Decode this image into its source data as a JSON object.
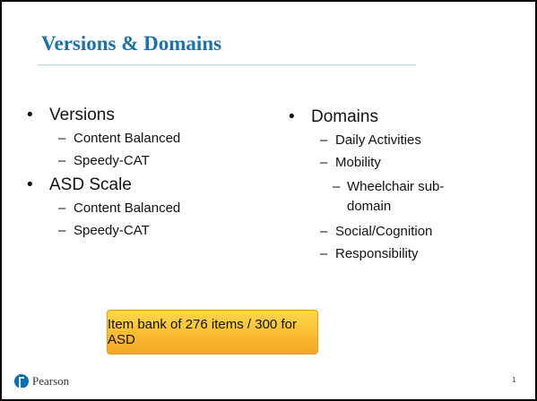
{
  "title": "Versions & Domains",
  "left": [
    {
      "text": "Versions",
      "items": [
        {
          "text": "Content Balanced"
        },
        {
          "text": "Speedy-CAT"
        }
      ]
    },
    {
      "text": "ASD Scale",
      "items": [
        {
          "text": "Content Balanced"
        },
        {
          "text": "Speedy-CAT"
        }
      ]
    }
  ],
  "right": [
    {
      "text": "Domains",
      "items": [
        {
          "text": "Daily Activities"
        },
        {
          "text": "Mobility",
          "items": [
            {
              "text": "Wheelchair sub-domain"
            }
          ]
        },
        {
          "text": "Social/Cognition"
        },
        {
          "text": "Responsibility"
        }
      ]
    }
  ],
  "callout": "Item bank of 276 items / 300 for ASD",
  "footer": {
    "brand": "Pearson",
    "page": "1"
  }
}
